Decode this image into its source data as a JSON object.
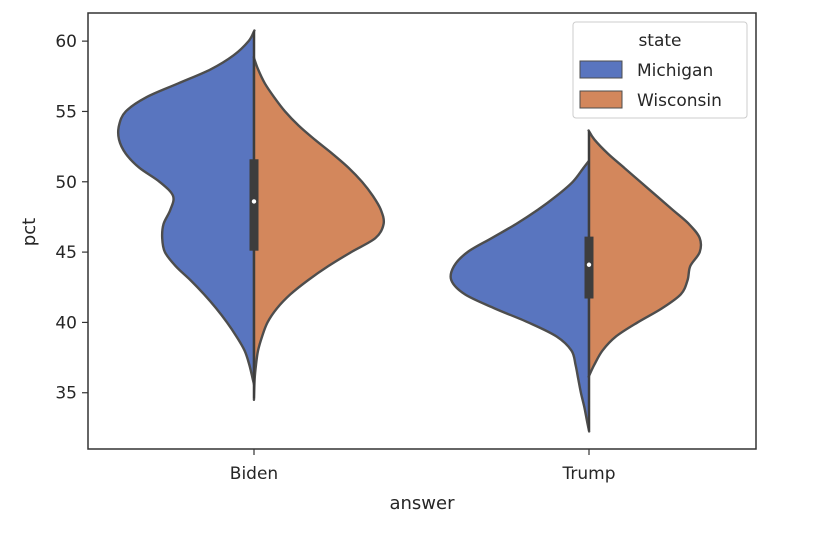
{
  "chart_data": {
    "type": "violin",
    "split": true,
    "xlabel": "answer",
    "ylabel": "pct",
    "categories": [
      "Biden",
      "Trump"
    ],
    "ylim": [
      31,
      62
    ],
    "yticks": [
      35,
      40,
      45,
      50,
      55,
      60
    ],
    "legend": {
      "title": "state",
      "placement": "top-right",
      "entries": [
        "Michigan",
        "Wisconsin"
      ]
    },
    "series": [
      {
        "name": "Michigan",
        "color": "#5975bf"
      },
      {
        "name": "Wisconsin",
        "color": "#d3875c"
      }
    ],
    "outline_color": "#4d4d4d",
    "violins": [
      {
        "category": "Biden",
        "median": 48.6,
        "q1": 45.1,
        "q3": 51.6,
        "Michigan": [
          [
            60.7,
            0
          ],
          [
            60.0,
            0.04
          ],
          [
            59.0,
            0.15
          ],
          [
            58.0,
            0.32
          ],
          [
            57.0,
            0.56
          ],
          [
            56.0,
            0.8
          ],
          [
            55.0,
            0.95
          ],
          [
            54.0,
            1.0
          ],
          [
            53.0,
            1.0
          ],
          [
            52.0,
            0.95
          ],
          [
            51.0,
            0.85
          ],
          [
            50.0,
            0.7
          ],
          [
            49.0,
            0.6
          ],
          [
            48.0,
            0.62
          ],
          [
            47.0,
            0.67
          ],
          [
            46.0,
            0.68
          ],
          [
            45.0,
            0.66
          ],
          [
            44.0,
            0.58
          ],
          [
            43.0,
            0.47
          ],
          [
            42.0,
            0.37
          ],
          [
            41.0,
            0.28
          ],
          [
            40.0,
            0.2
          ],
          [
            39.0,
            0.13
          ],
          [
            38.0,
            0.07
          ],
          [
            37.0,
            0.035
          ],
          [
            36.0,
            0.01
          ],
          [
            35.6,
            0
          ]
        ],
        "Wisconsin": [
          [
            58.8,
            0
          ],
          [
            58.0,
            0.03
          ],
          [
            57.0,
            0.08
          ],
          [
            56.0,
            0.15
          ],
          [
            55.0,
            0.23
          ],
          [
            54.0,
            0.33
          ],
          [
            53.0,
            0.45
          ],
          [
            52.0,
            0.58
          ],
          [
            51.0,
            0.7
          ],
          [
            50.0,
            0.8
          ],
          [
            49.0,
            0.88
          ],
          [
            48.0,
            0.94
          ],
          [
            47.0,
            0.96
          ],
          [
            46.0,
            0.9
          ],
          [
            45.0,
            0.72
          ],
          [
            44.0,
            0.55
          ],
          [
            43.0,
            0.4
          ],
          [
            42.0,
            0.27
          ],
          [
            41.0,
            0.17
          ],
          [
            40.0,
            0.1
          ],
          [
            39.0,
            0.06
          ],
          [
            38.0,
            0.03
          ],
          [
            37.0,
            0.015
          ],
          [
            36.0,
            0.005
          ],
          [
            34.6,
            0
          ]
        ]
      },
      {
        "category": "Trump",
        "median": 44.1,
        "q1": 41.7,
        "q3": 46.1,
        "Michigan": [
          [
            51.5,
            0
          ],
          [
            51.0,
            0.04
          ],
          [
            50.0,
            0.12
          ],
          [
            49.0,
            0.24
          ],
          [
            48.0,
            0.38
          ],
          [
            47.0,
            0.54
          ],
          [
            46.0,
            0.72
          ],
          [
            45.0,
            0.9
          ],
          [
            44.0,
            1.0
          ],
          [
            43.0,
            1.02
          ],
          [
            42.0,
            0.92
          ],
          [
            41.0,
            0.7
          ],
          [
            40.0,
            0.45
          ],
          [
            39.0,
            0.24
          ],
          [
            38.0,
            0.13
          ],
          [
            37.0,
            0.1
          ],
          [
            36.0,
            0.08
          ],
          [
            35.0,
            0.06
          ],
          [
            34.0,
            0.035
          ],
          [
            33.0,
            0.015
          ],
          [
            32.3,
            0
          ]
        ],
        "Wisconsin": [
          [
            53.6,
            0
          ],
          [
            53.0,
            0.04
          ],
          [
            52.0,
            0.14
          ],
          [
            51.0,
            0.26
          ],
          [
            50.0,
            0.38
          ],
          [
            49.0,
            0.5
          ],
          [
            48.0,
            0.62
          ],
          [
            47.0,
            0.74
          ],
          [
            46.0,
            0.82
          ],
          [
            45.0,
            0.82
          ],
          [
            44.0,
            0.75
          ],
          [
            43.0,
            0.73
          ],
          [
            42.0,
            0.68
          ],
          [
            41.0,
            0.54
          ],
          [
            40.0,
            0.36
          ],
          [
            39.0,
            0.2
          ],
          [
            38.0,
            0.1
          ],
          [
            37.0,
            0.04
          ],
          [
            36.2,
            0
          ]
        ]
      }
    ]
  }
}
